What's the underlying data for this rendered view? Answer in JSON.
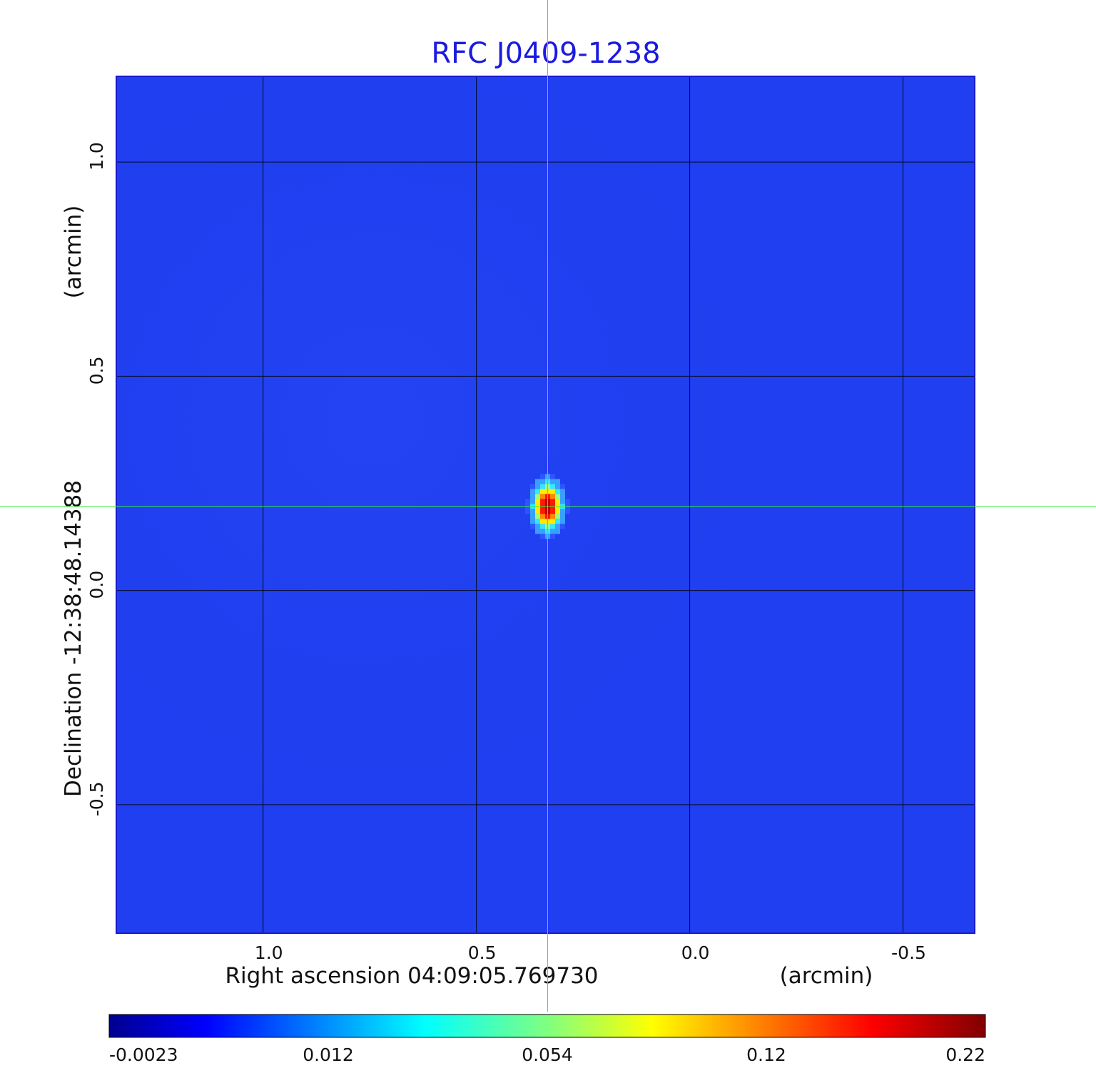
{
  "chart_data": {
    "type": "heatmap",
    "title": "RFC J0409-1238",
    "xlabel": "Right ascension  04:09:05.769730",
    "xunit": "(arcmin)",
    "ylabel": "Declination  -12:38:48.14388",
    "yunit": "(arcmin)",
    "xlim": [
      1.344,
      -0.668
    ],
    "ylim": [
      -0.8,
      1.2
    ],
    "x_ticks": [
      1.0,
      0.5,
      0.0,
      -0.5
    ],
    "x_tick_labels": [
      "1.0",
      "0.5",
      "0.0",
      "-0.5"
    ],
    "y_ticks": [
      1.0,
      0.5,
      0.0,
      -0.5
    ],
    "y_tick_labels": [
      "1.0",
      "0.5",
      "0.0",
      "-0.5"
    ],
    "grid": true,
    "crosshair": {
      "x": 0.333,
      "y": 0.196
    },
    "peak": {
      "x": 0.333,
      "y": 0.196,
      "value": 0.22
    },
    "colorbar": {
      "min": -0.0023,
      "max": 0.22,
      "tick_labels": [
        "-0.0023",
        "0.012",
        "0.054",
        "0.12",
        "0.22"
      ],
      "colormap": "jet"
    },
    "colors": {
      "background": "#1f3ff0",
      "title": "#1a1adf",
      "crosshair": "#33ee33",
      "grid": "#000000"
    }
  }
}
